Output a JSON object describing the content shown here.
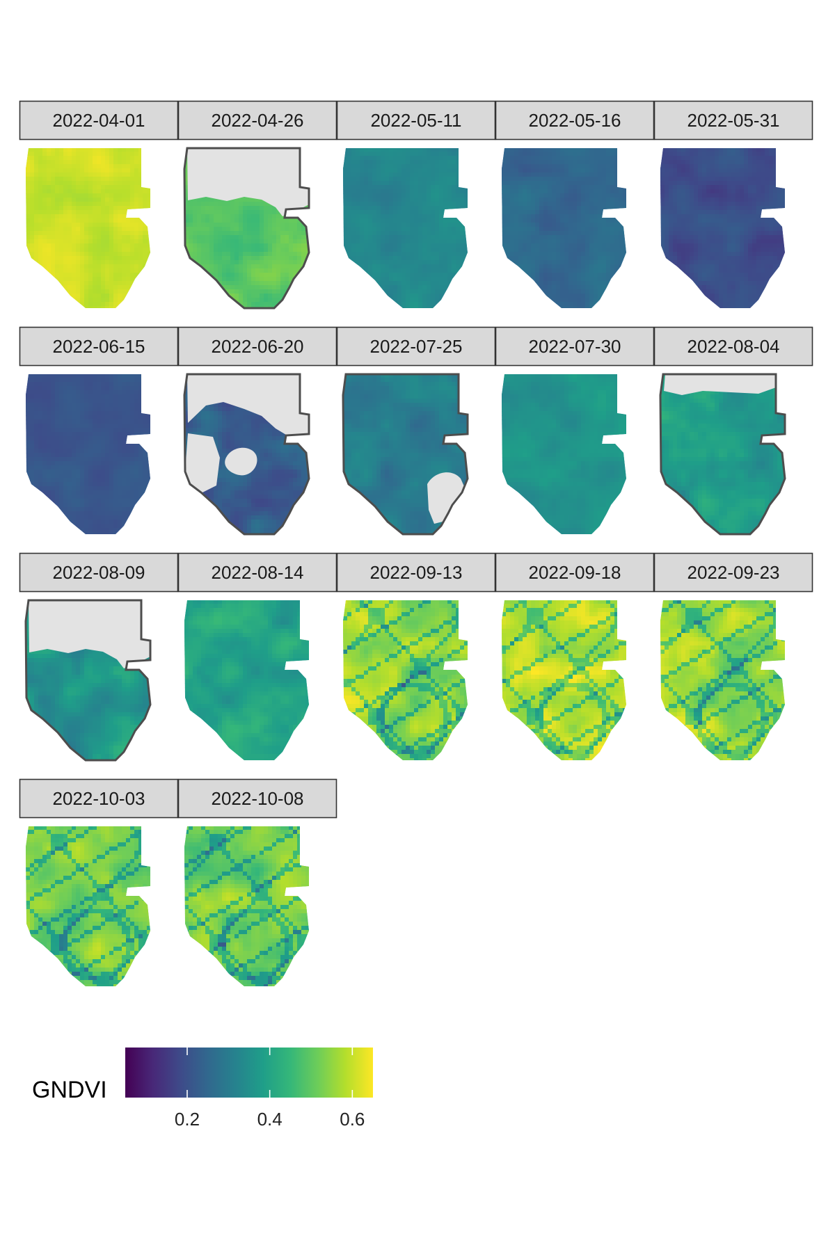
{
  "chart_data": {
    "type": "heatmap",
    "title": "",
    "facet_labels": [
      "2022-04-01",
      "2022-04-26",
      "2022-05-11",
      "2022-05-16",
      "2022-05-31",
      "2022-06-15",
      "2022-06-20",
      "2022-07-25",
      "2022-07-30",
      "2022-08-04",
      "2022-08-09",
      "2022-08-14",
      "2022-09-13",
      "2022-09-18",
      "2022-09-23",
      "2022-10-03",
      "2022-10-08"
    ],
    "facets": [
      {
        "date": "2022-04-01",
        "mean_gndvi": 0.6,
        "variability": 0.03,
        "pattern": "smooth"
      },
      {
        "date": "2022-04-26",
        "mean_gndvi": 0.5,
        "variability": 0.04,
        "pattern": "smooth",
        "missing": "north"
      },
      {
        "date": "2022-05-11",
        "mean_gndvi": 0.33,
        "variability": 0.03,
        "pattern": "smooth"
      },
      {
        "date": "2022-05-16",
        "mean_gndvi": 0.25,
        "variability": 0.03,
        "pattern": "smooth"
      },
      {
        "date": "2022-05-31",
        "mean_gndvi": 0.19,
        "variability": 0.03,
        "pattern": "smooth"
      },
      {
        "date": "2022-06-15",
        "mean_gndvi": 0.21,
        "variability": 0.02,
        "pattern": "smooth"
      },
      {
        "date": "2022-06-20",
        "mean_gndvi": 0.22,
        "variability": 0.05,
        "pattern": "smooth",
        "missing": "holes"
      },
      {
        "date": "2022-07-25",
        "mean_gndvi": 0.3,
        "variability": 0.04,
        "pattern": "smooth",
        "missing": "southeast"
      },
      {
        "date": "2022-07-30",
        "mean_gndvi": 0.36,
        "variability": 0.03,
        "pattern": "smooth"
      },
      {
        "date": "2022-08-04",
        "mean_gndvi": 0.38,
        "variability": 0.05,
        "pattern": "smooth",
        "missing": "top"
      },
      {
        "date": "2022-08-09",
        "mean_gndvi": 0.36,
        "variability": 0.06,
        "pattern": "smooth",
        "missing": "north"
      },
      {
        "date": "2022-08-14",
        "mean_gndvi": 0.4,
        "variability": 0.05,
        "pattern": "smooth"
      },
      {
        "date": "2022-09-13",
        "mean_gndvi": 0.56,
        "variability": 0.07,
        "pattern": "veins"
      },
      {
        "date": "2022-09-18",
        "mean_gndvi": 0.57,
        "variability": 0.07,
        "pattern": "veins"
      },
      {
        "date": "2022-09-23",
        "mean_gndvi": 0.55,
        "variability": 0.07,
        "pattern": "veins"
      },
      {
        "date": "2022-10-03",
        "mean_gndvi": 0.53,
        "variability": 0.06,
        "pattern": "veins"
      },
      {
        "date": "2022-10-08",
        "mean_gndvi": 0.52,
        "variability": 0.06,
        "pattern": "veins"
      }
    ],
    "legend": {
      "title": "GNDVI",
      "range": [
        0.05,
        0.65
      ],
      "ticks": [
        0.2,
        0.4,
        0.6
      ],
      "tick_labels": [
        "0.2",
        "0.4",
        "0.6"
      ],
      "colormap": "viridis",
      "placement": "bottom-left"
    },
    "colors": {
      "missing_fill": "#e3e3e3",
      "missing_outline": "#4d4d4d",
      "strip_fill": "#d9d9d9",
      "strip_border": "#333333"
    }
  }
}
